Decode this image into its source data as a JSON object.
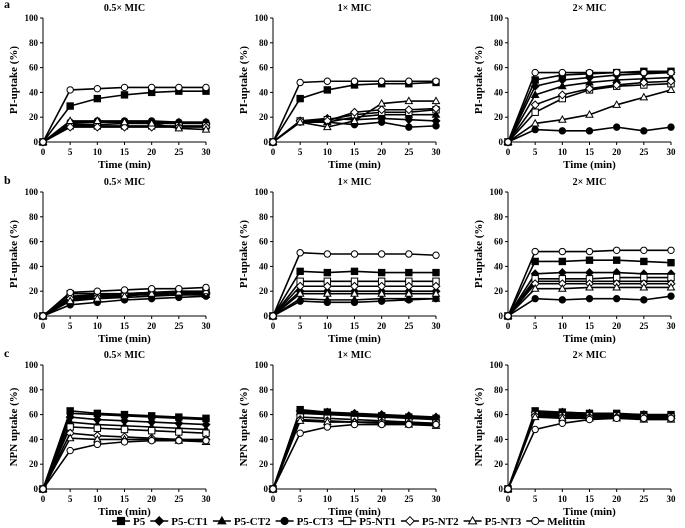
{
  "figure": {
    "row_labels": [
      "a",
      "b",
      "c"
    ],
    "x_label": "Time (min)",
    "x_ticks": [
      "0",
      "5",
      "10",
      "15",
      "20",
      "25",
      "30"
    ],
    "y_ticks": [
      "0",
      "20",
      "40",
      "60",
      "80",
      "100"
    ]
  },
  "legend": [
    {
      "name": "P5",
      "marker": "square",
      "fill": "#000000"
    },
    {
      "name": "P5-CT1",
      "marker": "diamond",
      "fill": "#000000"
    },
    {
      "name": "P5-CT2",
      "marker": "triangle",
      "fill": "#000000"
    },
    {
      "name": "P5-CT3",
      "marker": "circle",
      "fill": "#000000"
    },
    {
      "name": "P5-NT1",
      "marker": "square",
      "fill": "#ffffff"
    },
    {
      "name": "P5-NT2",
      "marker": "diamond",
      "fill": "#ffffff"
    },
    {
      "name": "P5-NT3",
      "marker": "triangle",
      "fill": "#ffffff"
    },
    {
      "name": "Melittin",
      "marker": "circle",
      "fill": "#ffffff"
    }
  ],
  "chart_data": [
    {
      "type": "line",
      "panel": "a1",
      "title": "0.5× MIC",
      "ylabel": "PI-uptake (%)",
      "xlabel": "Time (min)",
      "x": [
        0,
        5,
        10,
        15,
        20,
        25,
        30
      ],
      "ylim": [
        0,
        100
      ],
      "xlim": [
        0,
        30
      ],
      "series": [
        {
          "name": "P5",
          "values": [
            0,
            29,
            35,
            38,
            40,
            41,
            41
          ]
        },
        {
          "name": "P5-CT1",
          "values": [
            0,
            14,
            14,
            15,
            15,
            15,
            15
          ]
        },
        {
          "name": "P5-CT2",
          "values": [
            0,
            15,
            16,
            16,
            16,
            16,
            16
          ]
        },
        {
          "name": "P5-CT3",
          "values": [
            0,
            16,
            17,
            17,
            17,
            16,
            16
          ]
        },
        {
          "name": "P5-NT1",
          "values": [
            0,
            13,
            13,
            13,
            13,
            13,
            13
          ]
        },
        {
          "name": "P5-NT2",
          "values": [
            0,
            12,
            12,
            12,
            12,
            12,
            12
          ]
        },
        {
          "name": "P5-NT3",
          "values": [
            0,
            17,
            17,
            16,
            15,
            11,
            10
          ]
        },
        {
          "name": "Melittin",
          "values": [
            0,
            42,
            43,
            44,
            44,
            44,
            44
          ]
        }
      ]
    },
    {
      "type": "line",
      "panel": "a2",
      "title": "1× MIC",
      "ylabel": "PI-uptake (%)",
      "xlabel": "Time (min)",
      "x": [
        0,
        5,
        10,
        15,
        20,
        25,
        30
      ],
      "ylim": [
        0,
        100
      ],
      "xlim": [
        0,
        30
      ],
      "series": [
        {
          "name": "P5",
          "values": [
            0,
            35,
            42,
            46,
            47,
            47,
            48
          ]
        },
        {
          "name": "P5-CT1",
          "values": [
            0,
            17,
            19,
            18,
            19,
            18,
            17
          ]
        },
        {
          "name": "P5-CT2",
          "values": [
            0,
            16,
            16,
            20,
            22,
            22,
            22
          ]
        },
        {
          "name": "P5-CT3",
          "values": [
            0,
            16,
            16,
            14,
            16,
            12,
            13
          ]
        },
        {
          "name": "P5-NT1",
          "values": [
            0,
            17,
            18,
            22,
            24,
            24,
            26
          ]
        },
        {
          "name": "P5-NT2",
          "values": [
            0,
            17,
            17,
            24,
            26,
            26,
            27
          ]
        },
        {
          "name": "P5-NT3",
          "values": [
            0,
            16,
            12,
            17,
            31,
            33,
            33
          ]
        },
        {
          "name": "Melittin",
          "values": [
            0,
            48,
            49,
            49,
            49,
            49,
            49
          ]
        }
      ]
    },
    {
      "type": "line",
      "panel": "a3",
      "title": "2× MIC",
      "ylabel": "PI-uptake (%)",
      "xlabel": "Time (min)",
      "x": [
        0,
        5,
        10,
        15,
        20,
        25,
        30
      ],
      "ylim": [
        0,
        100
      ],
      "xlim": [
        0,
        30
      ],
      "series": [
        {
          "name": "P5",
          "values": [
            0,
            50,
            54,
            55,
            56,
            57,
            57
          ]
        },
        {
          "name": "P5-CT1",
          "values": [
            0,
            45,
            50,
            52,
            54,
            55,
            56
          ]
        },
        {
          "name": "P5-CT2",
          "values": [
            0,
            38,
            45,
            48,
            50,
            51,
            52
          ]
        },
        {
          "name": "P5-CT3",
          "values": [
            0,
            10,
            9,
            9,
            12,
            9,
            12
          ]
        },
        {
          "name": "P5-NT1",
          "values": [
            0,
            24,
            35,
            42,
            45,
            46,
            47
          ]
        },
        {
          "name": "P5-NT2",
          "values": [
            0,
            30,
            38,
            43,
            46,
            48,
            49
          ]
        },
        {
          "name": "P5-NT3",
          "values": [
            0,
            15,
            18,
            22,
            30,
            36,
            42
          ]
        },
        {
          "name": "Melittin",
          "values": [
            0,
            56,
            56,
            56,
            56,
            56,
            56
          ]
        }
      ]
    },
    {
      "type": "line",
      "panel": "b1",
      "title": "0.5× MIC",
      "ylabel": "PI-uptake (%)",
      "xlabel": "Time (min)",
      "x": [
        0,
        5,
        10,
        15,
        20,
        25,
        30
      ],
      "ylim": [
        0,
        100
      ],
      "xlim": [
        0,
        30
      ],
      "series": [
        {
          "name": "P5",
          "values": [
            0,
            18,
            18,
            18,
            19,
            19,
            19
          ]
        },
        {
          "name": "P5-CT1",
          "values": [
            0,
            15,
            16,
            17,
            17,
            18,
            18
          ]
        },
        {
          "name": "P5-CT2",
          "values": [
            0,
            13,
            14,
            15,
            16,
            17,
            17
          ]
        },
        {
          "name": "P5-CT3",
          "values": [
            0,
            9,
            11,
            13,
            14,
            15,
            16
          ]
        },
        {
          "name": "P5-NT1",
          "values": [
            0,
            16,
            17,
            18,
            19,
            20,
            20
          ]
        },
        {
          "name": "P5-NT2",
          "values": [
            0,
            14,
            15,
            17,
            18,
            19,
            19
          ]
        },
        {
          "name": "P5-NT3",
          "values": [
            0,
            12,
            14,
            16,
            18,
            19,
            20
          ]
        },
        {
          "name": "Melittin",
          "values": [
            0,
            19,
            20,
            21,
            22,
            22,
            23
          ]
        }
      ]
    },
    {
      "type": "line",
      "panel": "b2",
      "title": "1× MIC",
      "ylabel": "PI-uptake (%)",
      "xlabel": "Time (min)",
      "x": [
        0,
        5,
        10,
        15,
        20,
        25,
        30
      ],
      "ylim": [
        0,
        100
      ],
      "xlim": [
        0,
        30
      ],
      "series": [
        {
          "name": "P5",
          "values": [
            0,
            36,
            35,
            36,
            35,
            35,
            35
          ]
        },
        {
          "name": "P5-CT1",
          "values": [
            0,
            20,
            20,
            20,
            20,
            20,
            20
          ]
        },
        {
          "name": "P5-CT2",
          "values": [
            0,
            14,
            13,
            13,
            14,
            14,
            14
          ]
        },
        {
          "name": "P5-CT3",
          "values": [
            0,
            12,
            11,
            11,
            12,
            13,
            14
          ]
        },
        {
          "name": "P5-NT1",
          "values": [
            0,
            28,
            28,
            28,
            28,
            28,
            28
          ]
        },
        {
          "name": "P5-NT2",
          "values": [
            0,
            24,
            24,
            24,
            24,
            24,
            24
          ]
        },
        {
          "name": "P5-NT3",
          "values": [
            0,
            18,
            18,
            18,
            18,
            18,
            18
          ]
        },
        {
          "name": "Melittin",
          "values": [
            0,
            51,
            50,
            50,
            50,
            50,
            49
          ]
        }
      ]
    },
    {
      "type": "line",
      "panel": "b3",
      "title": "2× MIC",
      "ylabel": "PI-uptake (%)",
      "xlabel": "Time (min)",
      "x": [
        0,
        5,
        10,
        15,
        20,
        25,
        30
      ],
      "ylim": [
        0,
        100
      ],
      "xlim": [
        0,
        30
      ],
      "series": [
        {
          "name": "P5",
          "values": [
            0,
            44,
            44,
            45,
            45,
            44,
            43
          ]
        },
        {
          "name": "P5-CT1",
          "values": [
            0,
            34,
            35,
            35,
            35,
            34,
            34
          ]
        },
        {
          "name": "P5-CT2",
          "values": [
            0,
            28,
            28,
            28,
            28,
            28,
            28
          ]
        },
        {
          "name": "P5-CT3",
          "values": [
            0,
            14,
            13,
            14,
            14,
            13,
            16
          ]
        },
        {
          "name": "P5-NT1",
          "values": [
            0,
            30,
            30,
            30,
            31,
            31,
            31
          ]
        },
        {
          "name": "P5-NT2",
          "values": [
            0,
            26,
            26,
            26,
            26,
            26,
            26
          ]
        },
        {
          "name": "P5-NT3",
          "values": [
            0,
            22,
            22,
            23,
            23,
            23,
            23
          ]
        },
        {
          "name": "Melittin",
          "values": [
            0,
            52,
            52,
            52,
            53,
            53,
            53
          ]
        }
      ]
    },
    {
      "type": "line",
      "panel": "c1",
      "title": "0.5× MIC",
      "ylabel": "NPN uptake (%)",
      "xlabel": "Time (min)",
      "x": [
        0,
        5,
        10,
        15,
        20,
        25,
        30
      ],
      "ylim": [
        0,
        100
      ],
      "xlim": [
        0,
        30
      ],
      "series": [
        {
          "name": "P5",
          "values": [
            0,
            63,
            61,
            60,
            59,
            58,
            57
          ]
        },
        {
          "name": "P5-CT1",
          "values": [
            0,
            58,
            56,
            55,
            54,
            53,
            52
          ]
        },
        {
          "name": "P5-CT2",
          "values": [
            0,
            54,
            52,
            51,
            50,
            49,
            48
          ]
        },
        {
          "name": "P5-CT3",
          "values": [
            0,
            61,
            60,
            59,
            58,
            57,
            56
          ]
        },
        {
          "name": "P5-NT1",
          "values": [
            0,
            50,
            49,
            48,
            47,
            46,
            45
          ]
        },
        {
          "name": "P5-NT2",
          "values": [
            0,
            45,
            43,
            42,
            41,
            40,
            40
          ]
        },
        {
          "name": "P5-NT3",
          "values": [
            0,
            41,
            40,
            40,
            40,
            39,
            38
          ]
        },
        {
          "name": "Melittin",
          "values": [
            0,
            31,
            36,
            38,
            39,
            39,
            39
          ]
        }
      ]
    },
    {
      "type": "line",
      "panel": "c2",
      "title": "1× MIC",
      "ylabel": "NPN uptake (%)",
      "xlabel": "Time (min)",
      "x": [
        0,
        5,
        10,
        15,
        20,
        25,
        30
      ],
      "ylim": [
        0,
        100
      ],
      "xlim": [
        0,
        30
      ],
      "series": [
        {
          "name": "P5",
          "values": [
            0,
            64,
            62,
            60,
            59,
            58,
            57
          ]
        },
        {
          "name": "P5-CT1",
          "values": [
            0,
            63,
            62,
            61,
            60,
            59,
            58
          ]
        },
        {
          "name": "P5-CT2",
          "values": [
            0,
            62,
            61,
            60,
            59,
            58,
            57
          ]
        },
        {
          "name": "P5-CT3",
          "values": [
            0,
            61,
            60,
            59,
            58,
            57,
            56
          ]
        },
        {
          "name": "P5-NT1",
          "values": [
            0,
            58,
            57,
            56,
            55,
            54,
            53
          ]
        },
        {
          "name": "P5-NT2",
          "values": [
            0,
            56,
            55,
            54,
            54,
            53,
            52
          ]
        },
        {
          "name": "P5-NT3",
          "values": [
            0,
            55,
            54,
            54,
            53,
            52,
            51
          ]
        },
        {
          "name": "Melittin",
          "values": [
            0,
            45,
            50,
            52,
            52,
            52,
            52
          ]
        }
      ]
    },
    {
      "type": "line",
      "panel": "c3",
      "title": "2× MIC",
      "ylabel": "NPN uptake (%)",
      "xlabel": "Time (min)",
      "x": [
        0,
        5,
        10,
        15,
        20,
        25,
        30
      ],
      "ylim": [
        0,
        100
      ],
      "xlim": [
        0,
        30
      ],
      "series": [
        {
          "name": "P5",
          "values": [
            0,
            63,
            62,
            61,
            61,
            60,
            60
          ]
        },
        {
          "name": "P5-CT1",
          "values": [
            0,
            62,
            62,
            61,
            60,
            60,
            59
          ]
        },
        {
          "name": "P5-CT2",
          "values": [
            0,
            62,
            61,
            61,
            60,
            59,
            59
          ]
        },
        {
          "name": "P5-CT3",
          "values": [
            0,
            61,
            60,
            60,
            60,
            59,
            58
          ]
        },
        {
          "name": "P5-NT1",
          "values": [
            0,
            60,
            59,
            59,
            59,
            58,
            58
          ]
        },
        {
          "name": "P5-NT2",
          "values": [
            0,
            59,
            58,
            58,
            58,
            57,
            57
          ]
        },
        {
          "name": "P5-NT3",
          "values": [
            0,
            58,
            57,
            57,
            57,
            56,
            56
          ]
        },
        {
          "name": "Melittin",
          "values": [
            0,
            48,
            53,
            56,
            57,
            57,
            57
          ]
        }
      ]
    }
  ]
}
